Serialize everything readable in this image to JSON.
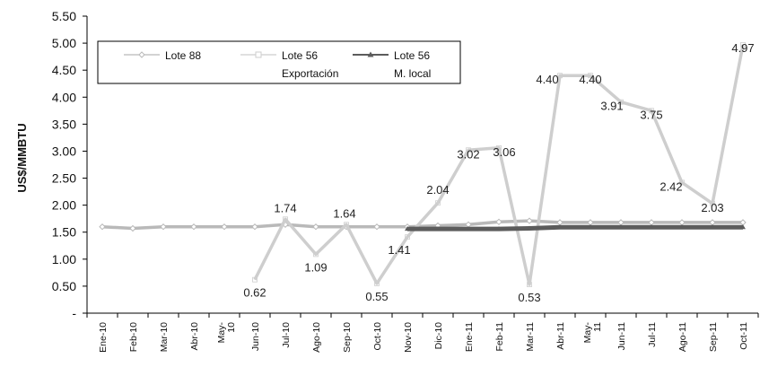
{
  "chart_data": {
    "type": "line",
    "title": "",
    "xlabel": "",
    "ylabel": "US$/MMBTU",
    "ylim": [
      0,
      5.5
    ],
    "y_ticks": [
      "-",
      "0.50",
      "1.00",
      "1.50",
      "2.00",
      "2.50",
      "3.00",
      "3.50",
      "4.00",
      "4.50",
      "5.00",
      "5.50"
    ],
    "grid": false,
    "legend_position": "top-left",
    "categories": [
      "Ene-10",
      "Feb-10",
      "Mar-10",
      "Abr-10",
      "May-10",
      "Jun-10",
      "Jul-10",
      "Ago-10",
      "Sep-10",
      "Oct-10",
      "Nov-10",
      "Dic-10",
      "Ene-11",
      "Feb-11",
      "Mar-11",
      "Abr-11",
      "May-11",
      "Jun-11",
      "Jul-11",
      "Ago-11",
      "Sep-11",
      "Oct-11"
    ],
    "series": [
      {
        "name": "Lote 88",
        "color": "#b9b9b9",
        "marker": "diamond",
        "values": [
          1.6,
          1.57,
          1.6,
          1.6,
          1.6,
          1.6,
          1.64,
          1.6,
          1.6,
          1.6,
          1.6,
          1.62,
          1.64,
          1.69,
          1.71,
          1.68,
          1.68,
          1.68,
          1.68,
          1.68,
          1.68,
          1.68
        ],
        "labels": []
      },
      {
        "name": "Lote 56 Exportación",
        "color": "#cecece",
        "marker": "square",
        "values": [
          null,
          null,
          null,
          null,
          null,
          0.62,
          1.74,
          1.09,
          1.64,
          0.55,
          1.41,
          2.04,
          3.02,
          3.06,
          0.53,
          4.4,
          4.4,
          3.91,
          3.75,
          2.42,
          2.03,
          4.97
        ],
        "labels": [
          "",
          "",
          "",
          "",
          "",
          "0.62",
          "1.74",
          "1.09",
          "1.64",
          "0.55",
          "1.41",
          "2.04",
          "3.02",
          "3.06",
          "0.53",
          "4.40",
          "4.40",
          "3.91",
          "3.75",
          "2.42",
          "2.03",
          "4.97"
        ]
      },
      {
        "name": "Lote 56 M. local",
        "color": "#5c5c5c",
        "marker": "triangle",
        "values": [
          null,
          null,
          null,
          null,
          null,
          null,
          null,
          null,
          null,
          null,
          1.56,
          1.56,
          1.56,
          1.56,
          1.57,
          1.59,
          1.59,
          1.59,
          1.59,
          1.59,
          1.59,
          1.59
        ],
        "labels": []
      }
    ]
  },
  "legend": {
    "items": [
      {
        "line1": "Lote 88",
        "line2": ""
      },
      {
        "line1": "Lote 56",
        "line2": "Exportación"
      },
      {
        "line1": "Lote 56",
        "line2": "M. local"
      }
    ]
  }
}
